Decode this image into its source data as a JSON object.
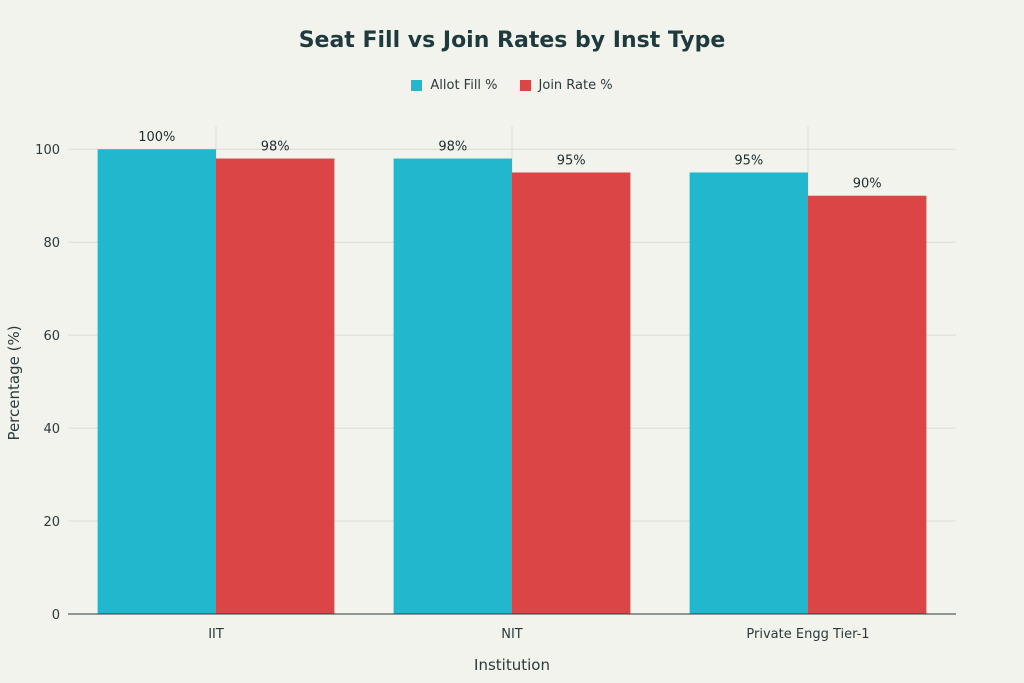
{
  "chart_data": {
    "type": "bar",
    "title": "Seat Fill vs Join Rates by Inst Type",
    "xlabel": "Institution",
    "ylabel": "Percentage (%)",
    "categories": [
      "IIT",
      "NIT",
      "Private Engg Tier-1"
    ],
    "series": [
      {
        "name": "Allot Fill %",
        "color": "#21b8cd",
        "values": [
          100,
          98,
          95
        ],
        "labels": [
          "100%",
          "98%",
          "95%"
        ]
      },
      {
        "name": "Join Rate %",
        "color": "#db4545",
        "values": [
          98,
          95,
          90
        ],
        "labels": [
          "98%",
          "95%",
          "90%"
        ]
      }
    ],
    "ylim": [
      0,
      105
    ],
    "yticks": [
      0,
      20,
      40,
      60,
      80,
      100
    ],
    "grid": true,
    "legend": "top-center"
  }
}
